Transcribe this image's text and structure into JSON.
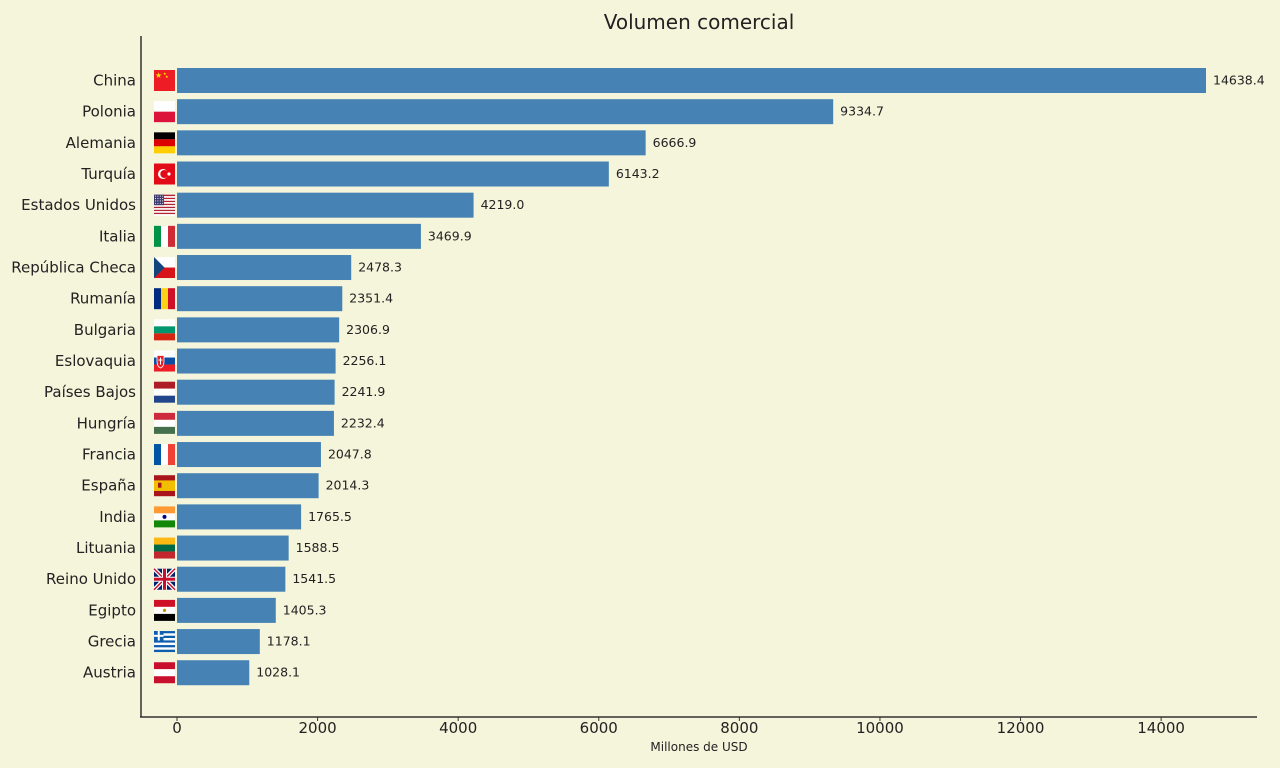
{
  "chart_data": {
    "type": "bar",
    "orientation": "horizontal",
    "title": "Volumen comercial",
    "xlabel": "Millones de USD",
    "ylabel": "",
    "xlim": [
      -500,
      15300
    ],
    "xticks": [
      0,
      2000,
      4000,
      6000,
      8000,
      10000,
      12000,
      14000
    ],
    "grid": false,
    "legend": "none",
    "bar_color": "#4682b4",
    "background_color": "#f5f5dc",
    "categories": [
      "China",
      "Polonia",
      "Alemania",
      "Turquía",
      "Estados Unidos",
      "Italia",
      "República Checa",
      "Rumanía",
      "Bulgaria",
      "Eslovaquia",
      "Países Bajos",
      "Hungría",
      "Francia",
      "España",
      "India",
      "Lituania",
      "Reino Unido",
      "Egipto",
      "Grecia",
      "Austria"
    ],
    "values": [
      14638.4,
      9334.7,
      6666.9,
      6143.2,
      4219.0,
      3469.9,
      2478.3,
      2351.4,
      2306.9,
      2256.1,
      2241.9,
      2232.4,
      2047.8,
      2014.3,
      1765.5,
      1588.5,
      1541.5,
      1405.3,
      1178.1,
      1028.1
    ],
    "value_labels": [
      "14638.4",
      "9334.7",
      "6666.9",
      "6143.2",
      "4219.0",
      "3469.9",
      "2478.3",
      "2351.4",
      "2306.9",
      "2256.1",
      "2241.9",
      "2232.4",
      "2047.8",
      "2014.3",
      "1765.5",
      "1588.5",
      "1541.5",
      "1405.3",
      "1178.1",
      "1028.1"
    ],
    "flags": [
      "flag-china-icon",
      "flag-poland-icon",
      "flag-germany-icon",
      "flag-turkey-icon",
      "flag-usa-icon",
      "flag-italy-icon",
      "flag-czech-icon",
      "flag-romania-icon",
      "flag-bulgaria-icon",
      "flag-slovakia-icon",
      "flag-netherlands-icon",
      "flag-hungary-icon",
      "flag-france-icon",
      "flag-spain-icon",
      "flag-india-icon",
      "flag-lithuania-icon",
      "flag-uk-icon",
      "flag-egypt-icon",
      "flag-greece-icon",
      "flag-austria-icon"
    ]
  }
}
